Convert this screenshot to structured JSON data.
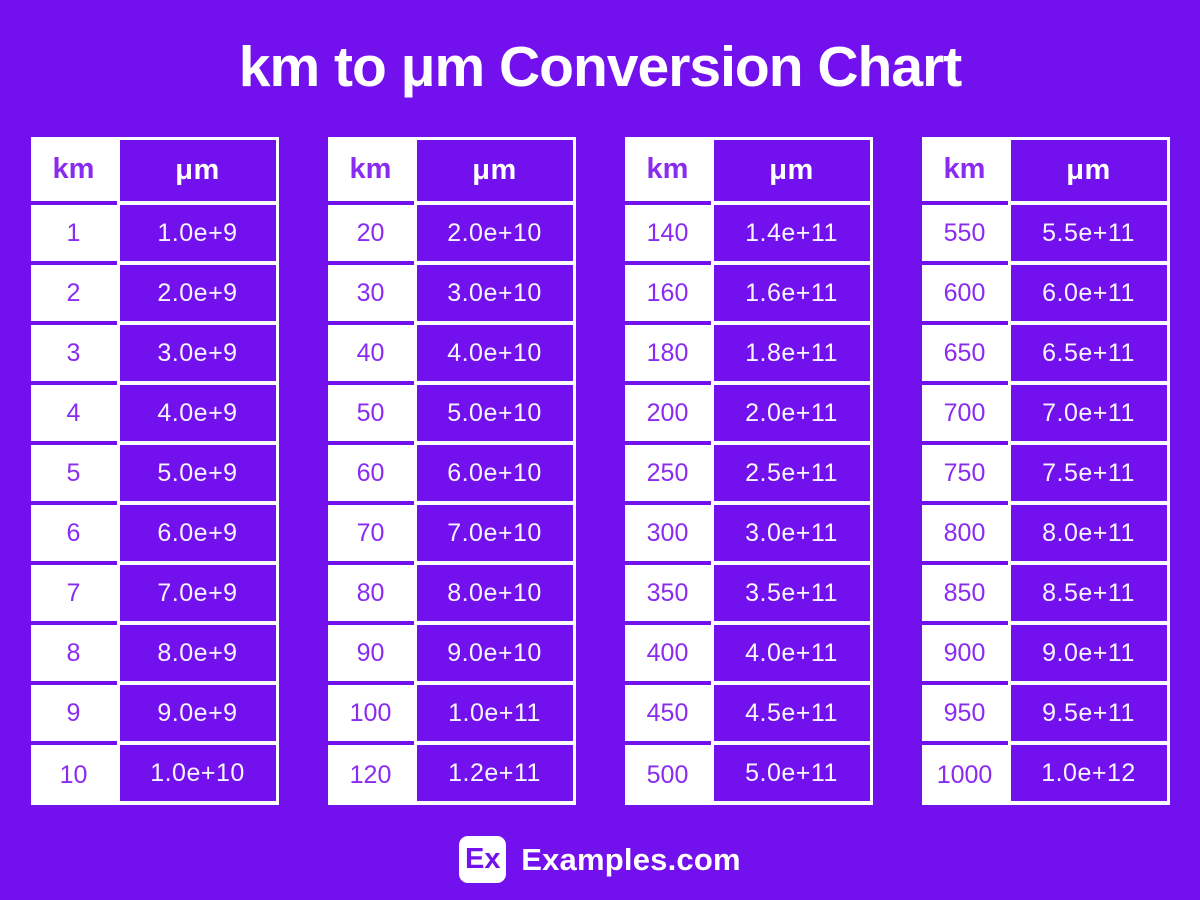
{
  "page": {
    "title": "km to μm Conversion Chart"
  },
  "footer": {
    "logo": "Ex",
    "brand": "Examples.com"
  },
  "colors": {
    "background": "#7211ED",
    "cell_fill": "#7211ED",
    "number_purple": "#8A2BF2",
    "white": "#FFFFFF"
  },
  "chart_data": {
    "type": "table",
    "title": "km to μm Conversion Chart",
    "columns": [
      "km",
      "μm"
    ],
    "tables": [
      {
        "rows": [
          {
            "km": "1",
            "um": "1.0e+9"
          },
          {
            "km": "2",
            "um": "2.0e+9"
          },
          {
            "km": "3",
            "um": "3.0e+9"
          },
          {
            "km": "4",
            "um": "4.0e+9"
          },
          {
            "km": "5",
            "um": "5.0e+9"
          },
          {
            "km": "6",
            "um": "6.0e+9"
          },
          {
            "km": "7",
            "um": "7.0e+9"
          },
          {
            "km": "8",
            "um": "8.0e+9"
          },
          {
            "km": "9",
            "um": "9.0e+9"
          },
          {
            "km": "10",
            "um": "1.0e+10"
          }
        ]
      },
      {
        "rows": [
          {
            "km": "20",
            "um": "2.0e+10"
          },
          {
            "km": "30",
            "um": "3.0e+10"
          },
          {
            "km": "40",
            "um": "4.0e+10"
          },
          {
            "km": "50",
            "um": "5.0e+10"
          },
          {
            "km": "60",
            "um": "6.0e+10"
          },
          {
            "km": "70",
            "um": "7.0e+10"
          },
          {
            "km": "80",
            "um": "8.0e+10"
          },
          {
            "km": "90",
            "um": "9.0e+10"
          },
          {
            "km": "100",
            "um": "1.0e+11"
          },
          {
            "km": "120",
            "um": "1.2e+11"
          }
        ]
      },
      {
        "rows": [
          {
            "km": "140",
            "um": "1.4e+11"
          },
          {
            "km": "160",
            "um": "1.6e+11"
          },
          {
            "km": "180",
            "um": "1.8e+11"
          },
          {
            "km": "200",
            "um": "2.0e+11"
          },
          {
            "km": "250",
            "um": "2.5e+11"
          },
          {
            "km": "300",
            "um": "3.0e+11"
          },
          {
            "km": "350",
            "um": "3.5e+11"
          },
          {
            "km": "400",
            "um": "4.0e+11"
          },
          {
            "km": "450",
            "um": "4.5e+11"
          },
          {
            "km": "500",
            "um": "5.0e+11"
          }
        ]
      },
      {
        "rows": [
          {
            "km": "550",
            "um": "5.5e+11"
          },
          {
            "km": "600",
            "um": "6.0e+11"
          },
          {
            "km": "650",
            "um": "6.5e+11"
          },
          {
            "km": "700",
            "um": "7.0e+11"
          },
          {
            "km": "750",
            "um": "7.5e+11"
          },
          {
            "km": "800",
            "um": "8.0e+11"
          },
          {
            "km": "850",
            "um": "8.5e+11"
          },
          {
            "km": "900",
            "um": "9.0e+11"
          },
          {
            "km": "950",
            "um": "9.5e+11"
          },
          {
            "km": "1000",
            "um": "1.0e+12"
          }
        ]
      }
    ]
  }
}
